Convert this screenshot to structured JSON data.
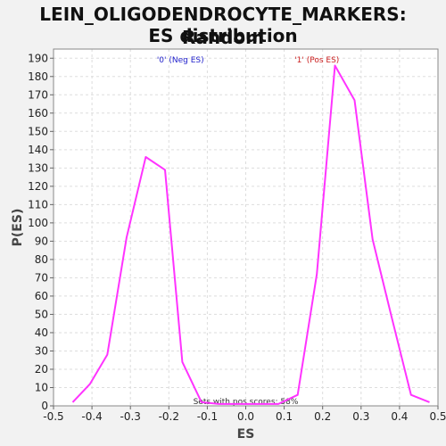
{
  "chart_data": {
    "type": "line",
    "title_line1": "LEIN_OLIGODENDROCYTE_MARKERS: Random",
    "title_line2": "ES distribution",
    "xlabel": "ES",
    "ylabel": "P(ES)",
    "xlim": [
      -0.5,
      0.5
    ],
    "ylim": [
      0,
      195
    ],
    "xticks": [
      -0.5,
      -0.4,
      -0.3,
      -0.2,
      -0.1,
      0.0,
      0.1,
      0.2,
      0.3,
      0.4,
      0.5
    ],
    "xtick_labels": [
      "-0.5",
      "-0.4",
      "-0.3",
      "-0.2",
      "-0.1",
      "0.0",
      "0.1",
      "0.2",
      "0.3",
      "0.4",
      "0.5"
    ],
    "yticks": [
      0,
      10,
      20,
      30,
      40,
      50,
      60,
      70,
      80,
      90,
      100,
      110,
      120,
      130,
      140,
      150,
      160,
      170,
      180,
      190
    ],
    "grid": true,
    "line_color": "#ff33ff",
    "series": [
      {
        "x": [
          -0.45,
          -0.405,
          -0.36,
          -0.31,
          -0.26,
          -0.21,
          -0.165,
          -0.115,
          -0.07,
          -0.02,
          0.03,
          0.085,
          0.135,
          0.185,
          0.232,
          0.283,
          0.33,
          0.38,
          0.43,
          0.478
        ],
        "y": [
          2,
          12,
          28,
          92,
          136,
          129,
          24,
          2,
          1,
          1,
          1,
          1,
          6,
          72,
          186,
          167,
          91,
          48,
          6,
          2
        ]
      }
    ],
    "annotations": {
      "neg_label": "'0' (Neg ES)",
      "neg_color": "#2222cc",
      "pos_label": "'1' (Pos ES)",
      "pos_color": "#cc2222",
      "pos_scores": "Sets with pos scores: 58%",
      "pos_scores_color": "#333333"
    }
  }
}
